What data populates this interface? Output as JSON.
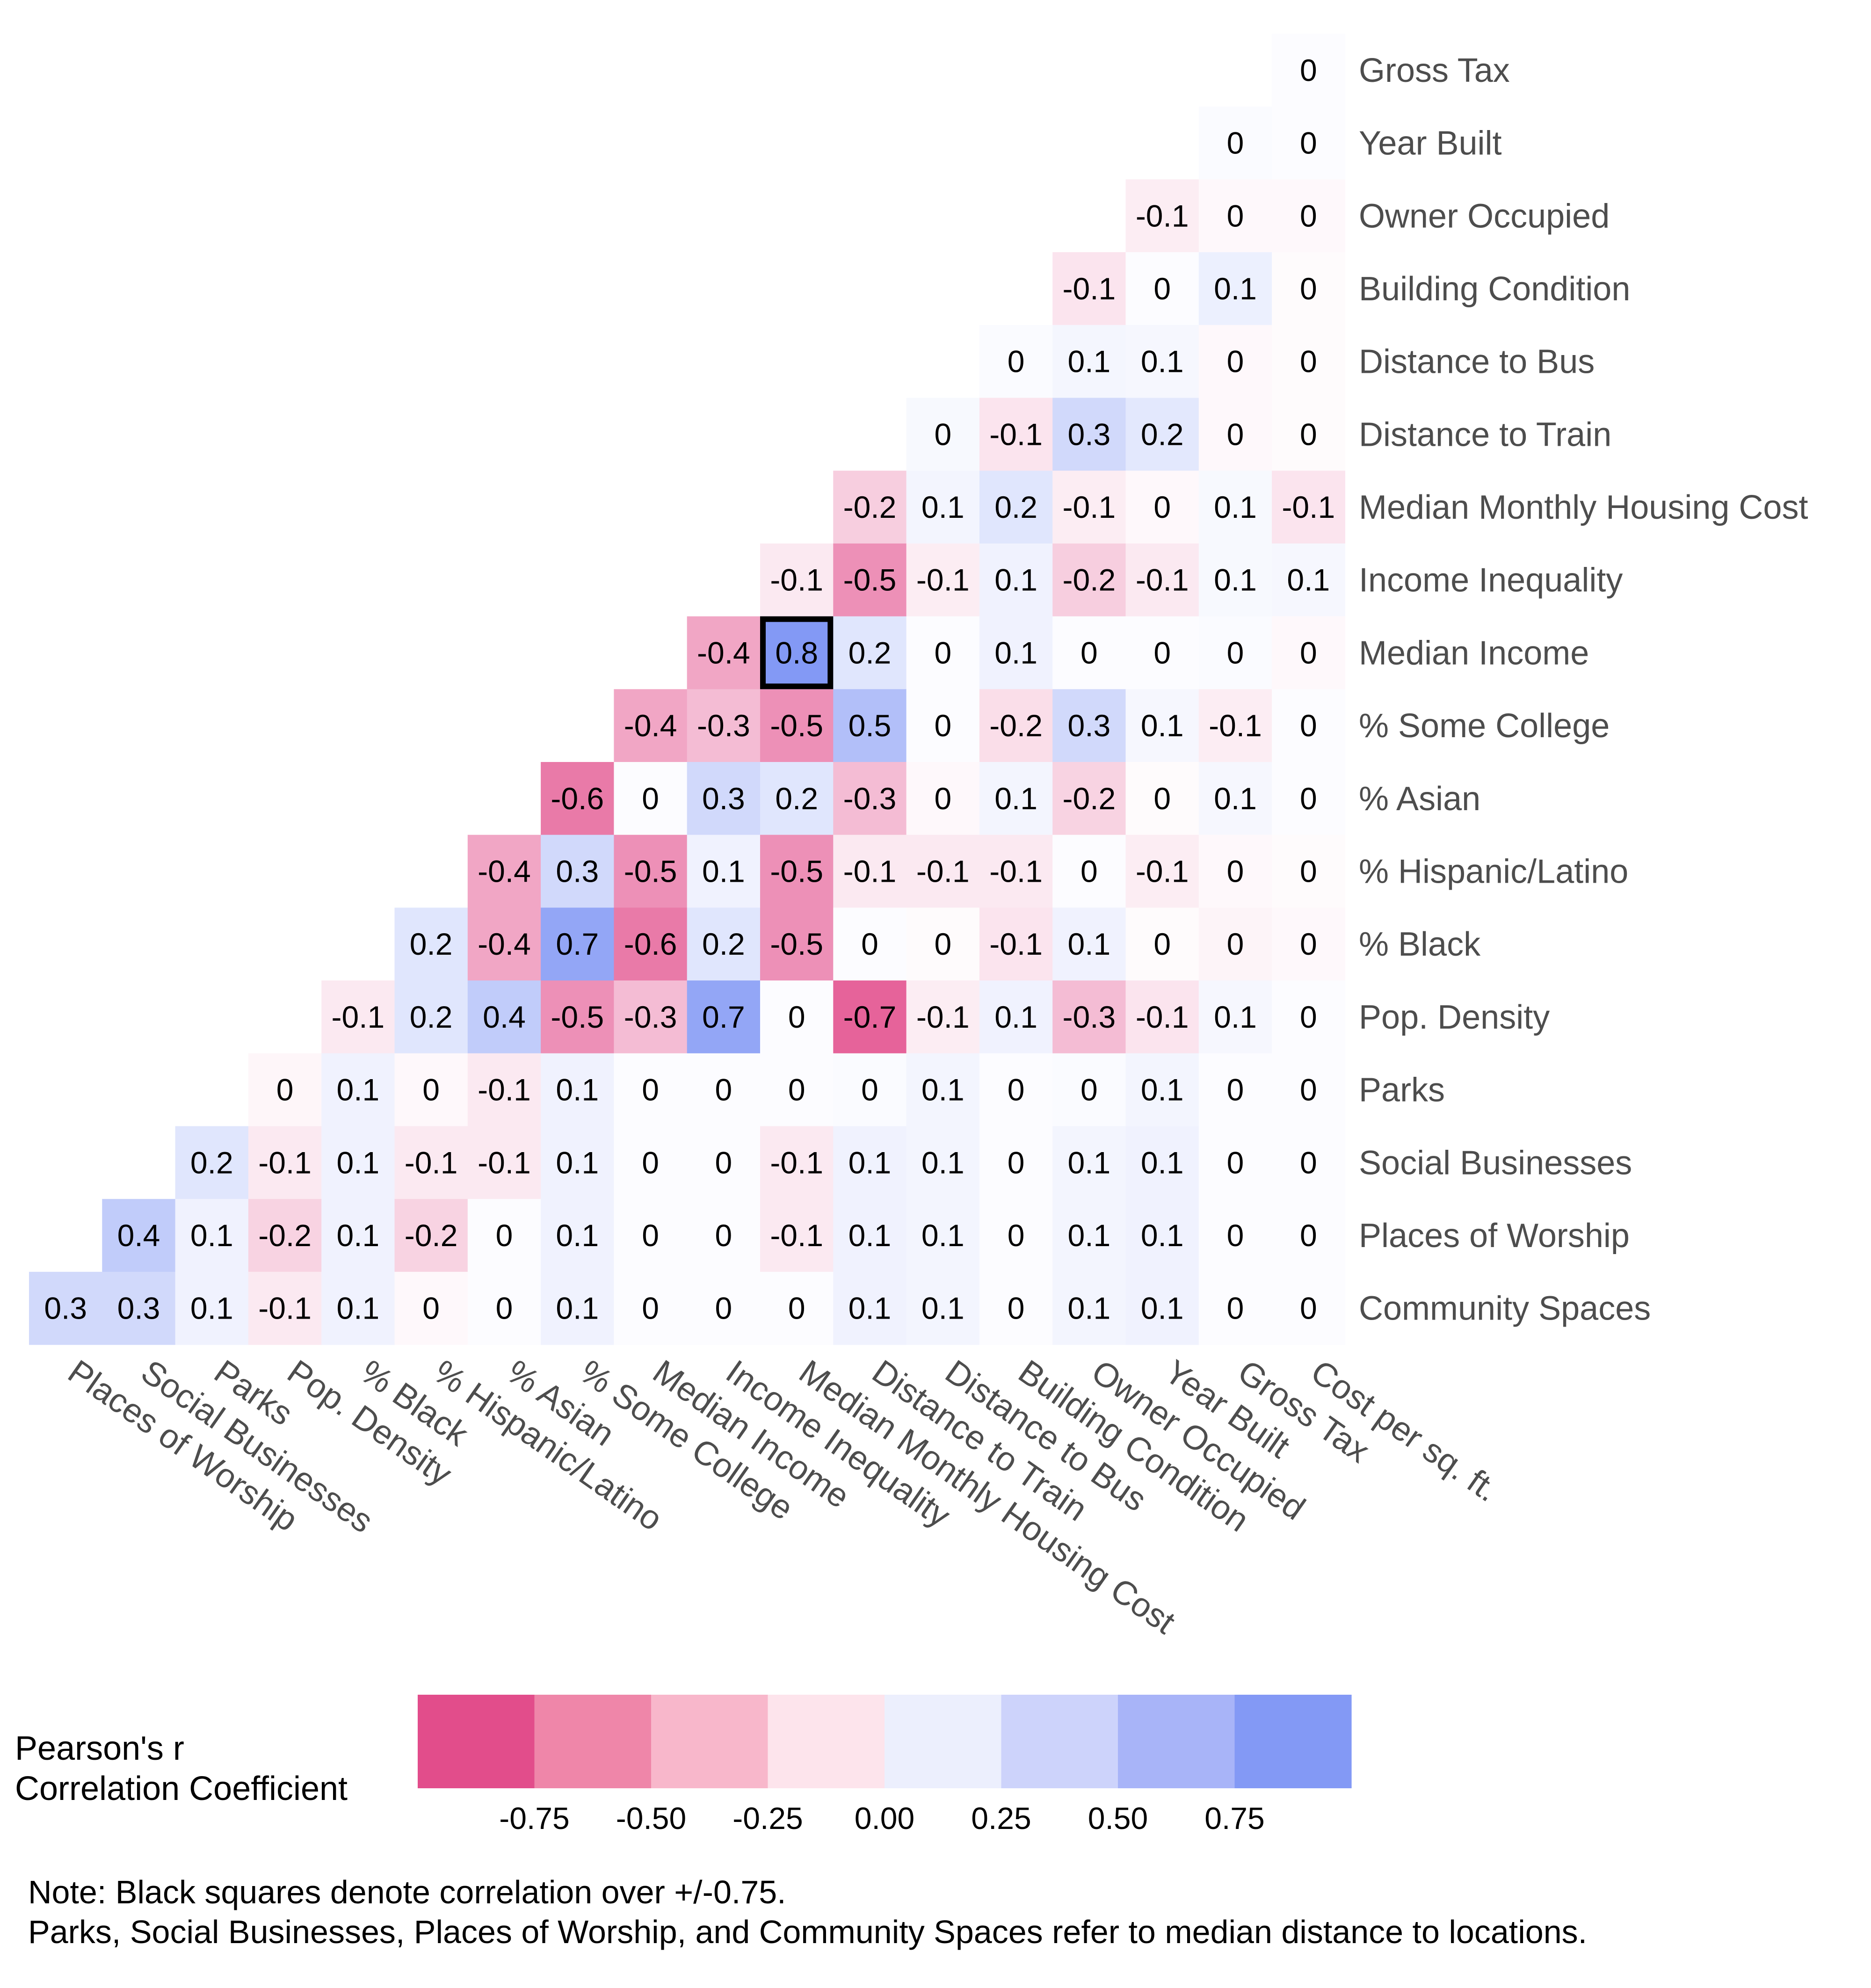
{
  "chart_data": {
    "type": "heatmap",
    "title": "",
    "xlabel": "",
    "ylabel": "",
    "rows": [
      "Gross Tax",
      "Year Built",
      "Owner Occupied",
      "Building Condition",
      "Distance to Bus",
      "Distance to Train",
      "Median Monthly Housing Cost",
      "Income Inequality",
      "Median Income",
      "% Some College",
      "% Asian",
      "% Hispanic/Latino",
      "% Black",
      "Pop. Density",
      "Parks",
      "Social Businesses",
      "Places of Worship",
      "Community Spaces"
    ],
    "columns": [
      "Places of Worship",
      "Social Businesses",
      "Parks",
      "Pop. Density",
      "% Black",
      "% Hispanic/Latino",
      "% Asian",
      "% Some College",
      "Median Income",
      "Income Inequality",
      "Median Monthly Housing Cost",
      "Distance to Train",
      "Distance to Bus",
      "Building Condition",
      "Owner Occupied",
      "Year Built",
      "Gross Tax",
      "Cost per sq. ft."
    ],
    "values": [
      [
        null,
        null,
        null,
        null,
        null,
        null,
        null,
        null,
        null,
        null,
        null,
        null,
        null,
        null,
        null,
        null,
        null,
        0
      ],
      [
        null,
        null,
        null,
        null,
        null,
        null,
        null,
        null,
        null,
        null,
        null,
        null,
        null,
        null,
        null,
        null,
        0,
        0
      ],
      [
        null,
        null,
        null,
        null,
        null,
        null,
        null,
        null,
        null,
        null,
        null,
        null,
        null,
        null,
        null,
        -0.1,
        0,
        0
      ],
      [
        null,
        null,
        null,
        null,
        null,
        null,
        null,
        null,
        null,
        null,
        null,
        null,
        null,
        null,
        -0.1,
        0,
        0.1,
        0
      ],
      [
        null,
        null,
        null,
        null,
        null,
        null,
        null,
        null,
        null,
        null,
        null,
        null,
        null,
        0,
        0.1,
        0.1,
        0,
        0
      ],
      [
        null,
        null,
        null,
        null,
        null,
        null,
        null,
        null,
        null,
        null,
        null,
        null,
        0,
        -0.1,
        0.3,
        0.2,
        0,
        0
      ],
      [
        null,
        null,
        null,
        null,
        null,
        null,
        null,
        null,
        null,
        null,
        null,
        -0.2,
        0.1,
        0.2,
        -0.1,
        0,
        0.1,
        -0.1
      ],
      [
        null,
        null,
        null,
        null,
        null,
        null,
        null,
        null,
        null,
        null,
        -0.1,
        -0.5,
        -0.1,
        0.1,
        -0.2,
        -0.1,
        0.1,
        0.1
      ],
      [
        null,
        null,
        null,
        null,
        null,
        null,
        null,
        null,
        null,
        -0.4,
        0.8,
        0.2,
        0,
        0.1,
        0,
        0,
        0,
        0
      ],
      [
        null,
        null,
        null,
        null,
        null,
        null,
        null,
        null,
        -0.4,
        -0.3,
        -0.5,
        0.5,
        0,
        -0.2,
        0.3,
        0.1,
        -0.1,
        0
      ],
      [
        null,
        null,
        null,
        null,
        null,
        null,
        null,
        -0.6,
        0,
        0.3,
        0.2,
        -0.3,
        0,
        0.1,
        -0.2,
        0,
        0.1,
        0
      ],
      [
        null,
        null,
        null,
        null,
        null,
        null,
        -0.4,
        0.3,
        -0.5,
        0.1,
        -0.5,
        -0.1,
        -0.1,
        -0.1,
        0,
        -0.1,
        0,
        0
      ],
      [
        null,
        null,
        null,
        null,
        null,
        0.2,
        -0.4,
        0.7,
        -0.6,
        0.2,
        -0.5,
        0,
        0,
        -0.1,
        0.1,
        0,
        0,
        0
      ],
      [
        null,
        null,
        null,
        null,
        -0.1,
        0.2,
        0.4,
        -0.5,
        -0.3,
        0.7,
        0,
        -0.7,
        -0.1,
        0.1,
        -0.3,
        -0.1,
        0.1,
        0
      ],
      [
        null,
        null,
        null,
        0,
        0.1,
        0,
        -0.1,
        0.1,
        0,
        0,
        0,
        0,
        0.1,
        0,
        0,
        0.1,
        0,
        0
      ],
      [
        null,
        null,
        0.2,
        -0.1,
        0.1,
        -0.1,
        -0.1,
        0.1,
        0,
        0,
        -0.1,
        0.1,
        0.1,
        0,
        0.1,
        0.1,
        0,
        0
      ],
      [
        null,
        0.4,
        0.1,
        -0.2,
        0.1,
        -0.2,
        0,
        0.1,
        0,
        0,
        -0.1,
        0.1,
        0.1,
        0,
        0.1,
        0.1,
        0,
        0
      ],
      [
        0.3,
        0.3,
        0.1,
        -0.1,
        0.1,
        0,
        0,
        0.1,
        0,
        0,
        0,
        0.1,
        0.1,
        0,
        0.1,
        0.1,
        0,
        0
      ]
    ],
    "fill_values": [
      [
        null,
        null,
        null,
        null,
        null,
        null,
        null,
        null,
        null,
        null,
        null,
        null,
        null,
        null,
        null,
        null,
        null,
        0.02
      ],
      [
        null,
        null,
        null,
        null,
        null,
        null,
        null,
        null,
        null,
        null,
        null,
        null,
        null,
        null,
        null,
        null,
        0.03,
        0.02
      ],
      [
        null,
        null,
        null,
        null,
        null,
        null,
        null,
        null,
        null,
        null,
        null,
        null,
        null,
        null,
        null,
        -0.08,
        -0.03,
        -0.03
      ],
      [
        null,
        null,
        null,
        null,
        null,
        null,
        null,
        null,
        null,
        null,
        null,
        null,
        null,
        null,
        -0.12,
        0.02,
        0.12,
        -0.02
      ],
      [
        null,
        null,
        null,
        null,
        null,
        null,
        null,
        null,
        null,
        null,
        null,
        null,
        null,
        0.03,
        0.07,
        0.06,
        -0.03,
        -0.02
      ],
      [
        null,
        null,
        null,
        null,
        null,
        null,
        null,
        null,
        null,
        null,
        null,
        null,
        0.05,
        -0.12,
        0.3,
        0.18,
        -0.03,
        -0.02
      ],
      [
        null,
        null,
        null,
        null,
        null,
        null,
        null,
        null,
        null,
        null,
        null,
        -0.22,
        0.08,
        0.2,
        -0.08,
        -0.03,
        0.05,
        -0.12
      ],
      [
        null,
        null,
        null,
        null,
        null,
        null,
        null,
        null,
        null,
        null,
        -0.1,
        -0.5,
        -0.08,
        0.1,
        -0.22,
        -0.1,
        0.05,
        0.06
      ],
      [
        null,
        null,
        null,
        null,
        null,
        null,
        null,
        null,
        null,
        -0.4,
        0.8,
        0.2,
        0.02,
        0.1,
        0.02,
        0.02,
        0.03,
        -0.03
      ],
      [
        null,
        null,
        null,
        null,
        null,
        null,
        null,
        null,
        -0.4,
        -0.3,
        -0.5,
        0.5,
        0.02,
        -0.15,
        0.3,
        0.06,
        -0.08,
        0.02
      ],
      [
        null,
        null,
        null,
        null,
        null,
        null,
        null,
        -0.6,
        0.02,
        0.3,
        0.2,
        -0.3,
        -0.03,
        0.08,
        -0.2,
        -0.02,
        0.06,
        0.02
      ],
      [
        null,
        null,
        null,
        null,
        null,
        null,
        -0.4,
        0.3,
        -0.5,
        0.1,
        -0.5,
        -0.1,
        -0.1,
        -0.1,
        0.02,
        -0.08,
        -0.03,
        -0.02
      ],
      [
        null,
        null,
        null,
        null,
        null,
        0.2,
        -0.4,
        0.7,
        -0.6,
        0.2,
        -0.5,
        0.02,
        -0.02,
        -0.12,
        0.1,
        -0.02,
        -0.05,
        -0.03
      ],
      [
        null,
        null,
        null,
        null,
        -0.1,
        0.2,
        0.4,
        -0.5,
        -0.3,
        0.7,
        0.02,
        -0.7,
        -0.08,
        0.1,
        -0.3,
        -0.12,
        0.06,
        0.02
      ],
      [
        null,
        null,
        null,
        -0.04,
        0.1,
        -0.03,
        -0.1,
        0.1,
        0.02,
        0.02,
        0.02,
        0.03,
        0.08,
        0.02,
        0.03,
        0.08,
        0.02,
        0.02
      ],
      [
        null,
        null,
        0.2,
        -0.1,
        0.1,
        -0.1,
        -0.1,
        0.1,
        0.02,
        0.02,
        -0.1,
        0.1,
        0.08,
        0.02,
        0.08,
        0.1,
        0.02,
        0.02
      ],
      [
        null,
        0.4,
        0.1,
        -0.2,
        0.1,
        -0.2,
        0.02,
        0.1,
        0.02,
        0.02,
        -0.1,
        0.1,
        0.08,
        0.02,
        0.08,
        0.1,
        0.02,
        0.02
      ],
      [
        0.3,
        0.3,
        0.1,
        -0.1,
        0.1,
        -0.03,
        0.02,
        0.1,
        0.02,
        0.02,
        0.02,
        0.1,
        0.08,
        0.02,
        0.08,
        0.1,
        0.02,
        0.02
      ]
    ],
    "highlight_threshold": 0.75,
    "legend": {
      "title_lines": [
        "Pearson's r",
        "Correlation Coefficient"
      ],
      "ticks": [
        "-0.75",
        "-0.50",
        "-0.25",
        "0.00",
        "0.25",
        "0.50",
        "0.75"
      ],
      "colors": [
        "#e24d8b",
        "#ef86a9",
        "#f8b7cb",
        "#fde4ec",
        "#eceffd",
        "#cdd3fb",
        "#a8b4f8",
        "#8399f5"
      ],
      "placement": "bottom"
    },
    "colors": {
      "negative": "#e24d8b",
      "neutral": "#ffffff",
      "positive": "#8399f5",
      "highlight_border": "#000000"
    }
  },
  "notes": {
    "line1": "Note: Black squares denote correlation over +/-0.75.",
    "line2": "Parks, Social Businesses, Places of Worship, and Community Spaces refer to median distance to locations."
  }
}
